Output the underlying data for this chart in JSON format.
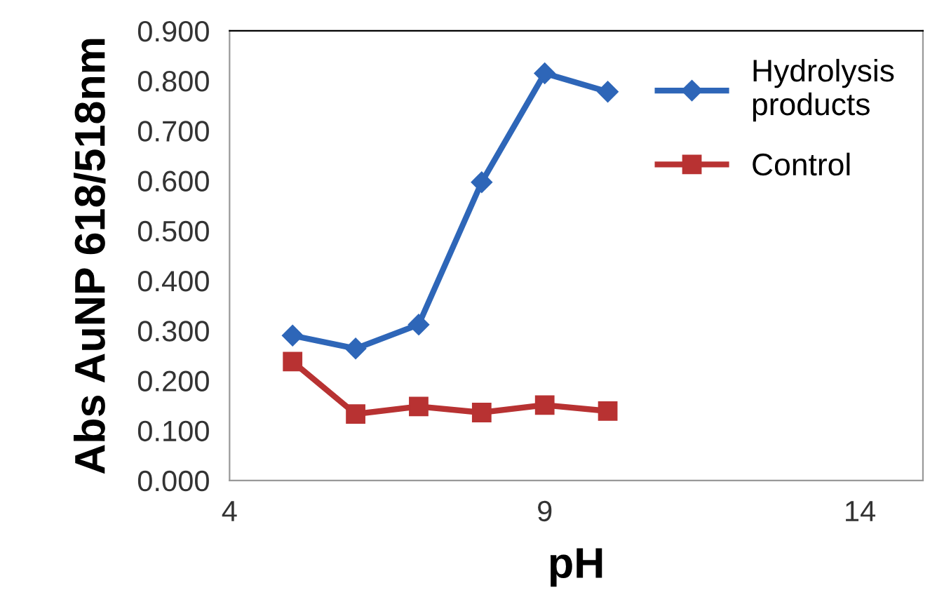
{
  "chart_data": {
    "type": "line",
    "xlabel": "pH",
    "ylabel": "Abs AuNP 618/518nm",
    "x": [
      5,
      6,
      7,
      8,
      9,
      10
    ],
    "series": [
      {
        "name": "Hydrolysis\nproducts",
        "color": "#2e66b8",
        "marker": "diamond",
        "values": [
          0.29,
          0.264,
          0.312,
          0.597,
          0.815,
          0.778
        ]
      },
      {
        "name": "Control",
        "color": "#b83232",
        "marker": "square",
        "values": [
          0.238,
          0.133,
          0.148,
          0.136,
          0.151,
          0.139
        ]
      }
    ],
    "xlim": [
      4,
      15
    ],
    "xticks": [
      4,
      9,
      14
    ],
    "ylim": [
      0,
      0.9
    ],
    "yticks": [
      {
        "value": 0,
        "label": "0.000"
      },
      {
        "value": 0.1,
        "label": "0.100"
      },
      {
        "value": 0.2,
        "label": "0.200"
      },
      {
        "value": 0.3,
        "label": "0.300"
      },
      {
        "value": 0.4,
        "label": "0.400"
      },
      {
        "value": 0.5,
        "label": "0.500"
      },
      {
        "value": 0.6,
        "label": "0.600"
      },
      {
        "value": 0.7,
        "label": "0.700"
      },
      {
        "value": 0.8,
        "label": "0.800"
      },
      {
        "value": 0.9,
        "label": "0.900"
      }
    ],
    "grid": false,
    "legend": "top right"
  }
}
